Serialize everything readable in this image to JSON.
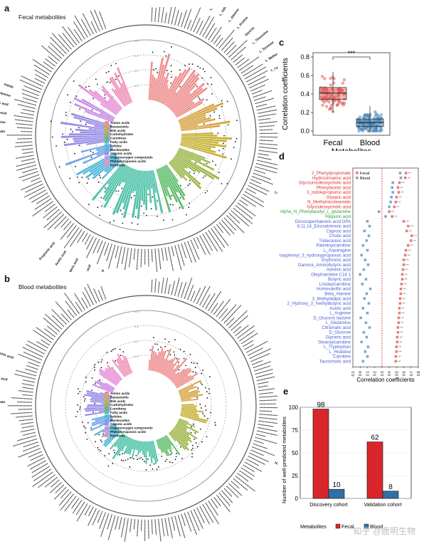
{
  "panels": {
    "a": {
      "letter": "a",
      "title": "Fecal metabolites"
    },
    "b": {
      "letter": "b",
      "title": "Blood metabolites"
    },
    "c": {
      "letter": "c"
    },
    "d": {
      "letter": "d"
    },
    "e": {
      "letter": "e"
    }
  },
  "circ_legend": [
    "Amino acids",
    "Benzenoids",
    "Bile acids",
    "Carbohydrates",
    "Carnitines",
    "Fatty acids",
    "Indoles",
    "Nucleosides",
    "Organic acids",
    "Organooxygen compounds",
    "Phenylpropanoic acids",
    "Pyridines"
  ],
  "circ_colors": [
    "#ee8f8f",
    "#d9a64a",
    "#c8b33a",
    "#9db84a",
    "#5fbf6a",
    "#4fc3a8",
    "#4fb8d8",
    "#6fa8e8",
    "#9a8fe6",
    "#c98de8",
    "#e88fd6",
    "#f090b8"
  ],
  "circ_labels_a": {
    "top": [
      "L_Leucine",
      "L_Isoleucine",
      "L_Phenylalanine",
      "L_Aspartic acid",
      "Glutamic acid",
      "L_Serine",
      "L_Valine",
      "L_Alanine",
      "L_Proline",
      "Glycine",
      "L_Threonine",
      "L_Tyrosine",
      "L_Methionine",
      "L_Lysine"
    ],
    "right": [
      "4_Hydroxyphenylpyruvic acid",
      "Benzoic acid",
      "Hippuric acid",
      "Phenylacetic acid",
      "Cholic acid",
      "Deoxycholic acid",
      "Lithocholic acid"
    ],
    "left": [
      "Adenosine monophosphate",
      "Inosine",
      "Indoleacetic acid",
      "3_Indolepropionic acid",
      "Tryptamine",
      "Indole"
    ],
    "bottom": [
      "Caproic acid",
      "Butyric acid",
      "Valeric acid",
      "Acetic acid",
      "Propionic acid"
    ]
  },
  "circ_labels_b": {
    "right": [
      "4_Hydroxyphenylpyruvic acid",
      "Benzoic acid",
      "Hippuric acid"
    ],
    "left": [
      "Adenosine monophosphate",
      "Indoleacetic acid",
      "3_Indolepropionic acid"
    ]
  },
  "circ_ticks": [
    "0.2",
    "0.4",
    "0.6",
    "0.8"
  ],
  "chart_data": [
    {
      "type": "bar",
      "layout": "circular",
      "panel": "a",
      "subtitle": "Fecal metabolites",
      "groups": [
        "Amino acids",
        "Benzenoids",
        "Bile acids",
        "Carbohydrates",
        "Carnitines",
        "Fatty acids",
        "Indoles",
        "Nucleosides",
        "Organic acids",
        "Organooxygen compounds",
        "Phenylpropanoic acids",
        "Pyridines"
      ],
      "group_counts": [
        30,
        10,
        10,
        16,
        10,
        28,
        9,
        6,
        14,
        5,
        8,
        8
      ],
      "ylim": [
        0,
        0.8
      ]
    },
    {
      "type": "bar",
      "layout": "circular",
      "panel": "b",
      "subtitle": "Blood metabolites",
      "groups": [
        "Amino acids",
        "Benzenoids",
        "Bile acids",
        "Carbohydrates",
        "Carnitines",
        "Fatty acids",
        "Indoles",
        "Nucleosides",
        "Organic acids",
        "Organooxygen compounds",
        "Phenylpropanoic acids",
        "Pyridines"
      ],
      "group_counts": [
        30,
        10,
        10,
        16,
        10,
        28,
        9,
        6,
        14,
        5,
        8,
        8
      ],
      "ylim": [
        0,
        0.8
      ]
    },
    {
      "type": "box",
      "panel": "c",
      "categories": [
        "Fecal",
        "Blood"
      ],
      "xlabel": "Metabolites",
      "ylabel": "Correlation coefficients",
      "ylim": [
        0,
        0.8
      ],
      "yticks": [
        "0.0",
        "0.2",
        "0.4",
        "0.6",
        "0.8"
      ],
      "boxes": [
        {
          "name": "Fecal",
          "q1": 0.34,
          "median": 0.41,
          "q3": 0.47,
          "whisker_low": 0.2,
          "whisker_high": 0.64,
          "color": "#e05656"
        },
        {
          "name": "Blood",
          "q1": 0.05,
          "median": 0.09,
          "q3": 0.13,
          "whisker_low": 0.0,
          "whisker_high": 0.27,
          "color": "#4a86b8"
        }
      ],
      "significance": "***"
    },
    {
      "type": "scatter",
      "panel": "d",
      "xlabel": "Correlation coefficients",
      "xlim": [
        -0.1,
        0.8
      ],
      "xticks": [
        "-0.1",
        "0.0",
        "0.1",
        "0.2",
        "0.3",
        "0.4",
        "0.5",
        "0.6",
        "0.7",
        "0.8"
      ],
      "threshold": 0.3,
      "series_names": [
        "Fecal",
        "Blood"
      ],
      "rows": [
        {
          "name": "2_Phenylpropionate",
          "c": "#e03030",
          "f": 0.63,
          "b": 0.55
        },
        {
          "name": "Hydrocinnamic acid",
          "c": "#e03030",
          "f": 0.62,
          "b": 0.56
        },
        {
          "name": "Glycoursodeoxycholic acid",
          "c": "#e03030",
          "f": 0.54,
          "b": 0.45
        },
        {
          "name": "Phenylacetic acid",
          "c": "#e03030",
          "f": 0.52,
          "b": 0.44
        },
        {
          "name": "3_Indolepropionic acid",
          "c": "#e03030",
          "f": 0.53,
          "b": 0.45
        },
        {
          "name": "Glutaric acid",
          "c": "#e03030",
          "f": 0.5,
          "b": 0.43
        },
        {
          "name": "N_Methylnicotinamide",
          "c": "#e03030",
          "f": 0.49,
          "b": 0.42
        },
        {
          "name": "Glycodeoxycholic acid",
          "c": "#e03030",
          "f": 0.47,
          "b": 0.4
        },
        {
          "name": "Alpha_N_Phenylacetyl_L_glutamine",
          "c": "#2e9e3a",
          "f": 0.4,
          "b": 0.26
        },
        {
          "name": "Hippuric acid",
          "c": "#2e9e3a",
          "f": 0.44,
          "b": 0.35
        },
        {
          "name": "Docosapentaenoic acid DPA",
          "c": "#4b5fd1",
          "f": 0.6,
          "b": 0.1
        },
        {
          "name": "8,11,14_Eicosatrienoic acid",
          "c": "#4b5fd1",
          "f": 0.66,
          "b": 0.13
        },
        {
          "name": "Caproic acid",
          "c": "#4b5fd1",
          "f": 0.64,
          "b": 0.06
        },
        {
          "name": "Cholic acid",
          "c": "#4b5fd1",
          "f": 0.71,
          "b": 0.12
        },
        {
          "name": "Tridecanoic acid",
          "c": "#4b5fd1",
          "f": 0.7,
          "b": 0.09
        },
        {
          "name": "Palmitoylcarnitine",
          "c": "#4b5fd1",
          "f": 0.66,
          "b": 0.04
        },
        {
          "name": "L_Asparagine",
          "c": "#4b5fd1",
          "f": 0.63,
          "b": 0.1
        },
        {
          "name": "3_3_Hydroxyphenyl_3_hydroxypropanoic acid",
          "c": "#4b5fd1",
          "f": 0.62,
          "b": 0.02
        },
        {
          "name": "Erythronic acid",
          "c": "#4b5fd1",
          "f": 0.6,
          "b": 0.07
        },
        {
          "name": "Gamma_Aminobutyric acid",
          "c": "#4b5fd1",
          "f": 0.6,
          "b": 0.11
        },
        {
          "name": "Adrenic acid",
          "c": "#4b5fd1",
          "f": 0.59,
          "b": 0.05
        },
        {
          "name": "Oleylcarnitine C18 1",
          "c": "#4b5fd1",
          "f": 0.58,
          "b": 0.0
        },
        {
          "name": "Butyric acid",
          "c": "#4b5fd1",
          "f": 0.58,
          "b": 0.08
        },
        {
          "name": "Linoleylcarnitine",
          "c": "#4b5fd1",
          "f": 0.57,
          "b": 0.03
        },
        {
          "name": "Homovanillic acid",
          "c": "#4b5fd1",
          "f": 0.56,
          "b": 0.14
        },
        {
          "name": "Beta_Alanine",
          "c": "#4b5fd1",
          "f": 0.56,
          "b": 0.09
        },
        {
          "name": "3_Methyladipic acid",
          "c": "#4b5fd1",
          "f": 0.55,
          "b": 0.06
        },
        {
          "name": "2_Hydroxy_3_methylbutyric acid",
          "c": "#4b5fd1",
          "f": 0.55,
          "b": 0.12
        },
        {
          "name": "Acetic acid",
          "c": "#4b5fd1",
          "f": 0.54,
          "b": 0.04
        },
        {
          "name": "L_Arginine",
          "c": "#4b5fd1",
          "f": 0.54,
          "b": 0.1
        },
        {
          "name": "D_Glucono lactone",
          "c": "#4b5fd1",
          "f": 0.53,
          "b": 0.01
        },
        {
          "name": "L_Glutamine",
          "c": "#4b5fd1",
          "f": 0.53,
          "b": 0.08
        },
        {
          "name": "Citramalic acid",
          "c": "#4b5fd1",
          "f": 0.52,
          "b": 0.13
        },
        {
          "name": "D_Glucose",
          "c": "#4b5fd1",
          "f": 0.52,
          "b": 0.05
        },
        {
          "name": "Glyceric acid",
          "c": "#4b5fd1",
          "f": 0.51,
          "b": 0.09
        },
        {
          "name": "Stearoylcarnitine",
          "c": "#4b5fd1",
          "f": 0.51,
          "b": 0.02
        },
        {
          "name": "L_Tryptophan",
          "c": "#4b5fd1",
          "f": 0.5,
          "b": 0.11
        },
        {
          "name": "L_Histidine",
          "c": "#4b5fd1",
          "f": 0.5,
          "b": 0.07
        },
        {
          "name": "Carnitine",
          "c": "#4b5fd1",
          "f": 0.49,
          "b": 0.1
        },
        {
          "name": "Taurocholic acid",
          "c": "#4b5fd1",
          "f": 0.49,
          "b": 0.04
        }
      ]
    },
    {
      "type": "bar",
      "panel": "e",
      "categories": [
        "Discovery cohort",
        "Validation cohort"
      ],
      "series": [
        {
          "name": "Fecal",
          "values": [
            98,
            62
          ],
          "color": "#d9262b"
        },
        {
          "name": "Blood",
          "values": [
            10,
            8
          ],
          "color": "#2f6fa7"
        }
      ],
      "ylabel": "Number of well-predicted metabolites",
      "ylim": [
        0,
        100
      ],
      "yticks": [
        "0",
        "25",
        "50",
        "75",
        "100"
      ],
      "legend_title": "Metabolites"
    }
  ],
  "watermark": "知乎 @鹿明生物"
}
